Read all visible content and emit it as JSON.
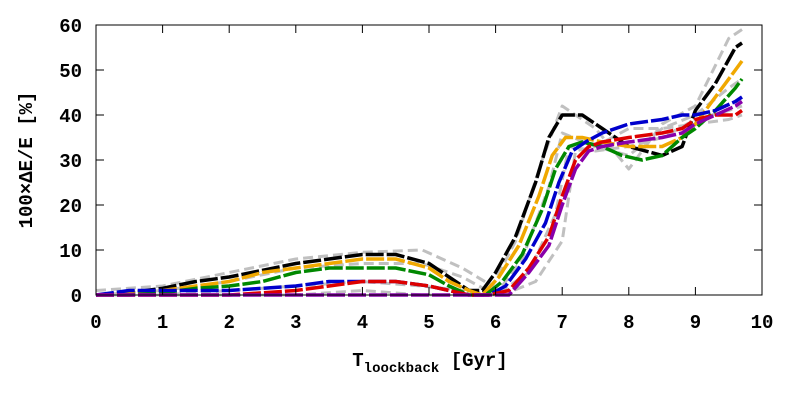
{
  "chart_data": {
    "type": "line",
    "title": "",
    "xlabel": {
      "main": "T",
      "sub": "loockback",
      "unit": "[Gyr]"
    },
    "ylabel": "100×ΔE/E [%]",
    "xlim": [
      0,
      10
    ],
    "ylim": [
      0,
      60
    ],
    "xticks": [
      "0",
      "1",
      "2",
      "3",
      "4",
      "5",
      "6",
      "7",
      "8",
      "9",
      "10"
    ],
    "yticks": [
      "0",
      "10",
      "20",
      "30",
      "40",
      "50",
      "60"
    ],
    "grid": false,
    "legend": "none",
    "colors": {
      "ensemble": "#c0c0c0",
      "black": "#000000",
      "orange": "#f0a800",
      "green": "#008800",
      "blue": "#0000cc",
      "red": "#dd0000",
      "purple": "#8800aa"
    },
    "series": [
      {
        "color": "ensemble",
        "x": [
          0.0,
          1.0,
          2.0,
          3.0,
          4.0,
          4.9,
          5.5,
          5.95,
          6.3,
          6.7,
          7.0,
          7.5,
          8.0,
          8.5,
          9.0,
          9.5,
          9.7
        ],
        "y": [
          1,
          2,
          5,
          8,
          9.5,
          10,
          6,
          2,
          12,
          30,
          42,
          37,
          28,
          38,
          42,
          57,
          59
        ]
      },
      {
        "color": "ensemble",
        "x": [
          0.0,
          1.0,
          2.0,
          3.0,
          4.0,
          4.9,
          5.5,
          6.0,
          6.4,
          6.8,
          7.0,
          7.5,
          8.0,
          8.5,
          9.0,
          9.5,
          9.7
        ],
        "y": [
          0,
          1,
          3,
          6,
          7,
          7,
          4,
          0,
          8,
          24,
          36,
          33,
          31,
          37,
          40,
          46,
          48
        ]
      },
      {
        "color": "ensemble",
        "x": [
          0.0,
          1.0,
          2.0,
          3.0,
          4.0,
          4.9,
          5.5,
          6.0,
          6.5,
          6.9,
          7.1,
          7.5,
          8.0,
          8.5,
          9.0,
          9.5,
          9.7
        ],
        "y": [
          0,
          0,
          1,
          2,
          3,
          2,
          1,
          -1,
          5,
          18,
          33,
          32,
          33,
          35,
          39,
          41,
          42
        ]
      },
      {
        "color": "ensemble",
        "x": [
          0.0,
          1.0,
          2.0,
          3.0,
          4.0,
          4.9,
          5.5,
          6.1,
          6.6,
          7.0,
          7.2,
          7.5,
          8.0,
          8.5,
          9.0,
          9.5,
          9.7
        ],
        "y": [
          0,
          0,
          0,
          0,
          1,
          0,
          -1,
          -1,
          3,
          12,
          32,
          33,
          37,
          37,
          38,
          39,
          40
        ]
      },
      {
        "color": "black",
        "x": [
          0.0,
          0.5,
          1.0,
          1.5,
          2.0,
          2.5,
          3.0,
          3.5,
          4.0,
          4.5,
          5.0,
          5.3,
          5.6,
          5.8,
          6.0,
          6.3,
          6.6,
          6.8,
          7.0,
          7.3,
          7.6,
          8.0,
          8.5,
          8.8,
          9.0,
          9.3,
          9.6,
          9.7
        ],
        "y": [
          0,
          0.5,
          1.5,
          3,
          4,
          5.5,
          7,
          8,
          9,
          9,
          7,
          4,
          1,
          1,
          5,
          13,
          25,
          35,
          40,
          40,
          37,
          33,
          31,
          33,
          41,
          47,
          55,
          56
        ]
      },
      {
        "color": "orange",
        "x": [
          0.0,
          0.5,
          1.0,
          1.5,
          2.0,
          2.5,
          3.0,
          3.5,
          4.0,
          4.5,
          5.0,
          5.3,
          5.6,
          5.8,
          6.05,
          6.35,
          6.65,
          6.85,
          7.05,
          7.3,
          7.6,
          8.0,
          8.5,
          8.8,
          9.0,
          9.3,
          9.6,
          9.7
        ],
        "y": [
          0,
          0.5,
          1,
          2,
          3,
          5,
          6,
          7,
          8,
          8,
          6,
          3,
          1,
          0,
          4,
          11,
          22,
          31,
          35,
          35,
          34,
          33,
          33,
          35,
          38,
          44,
          50,
          52
        ]
      },
      {
        "color": "green",
        "x": [
          0.0,
          0.5,
          1.0,
          1.5,
          2.0,
          2.5,
          3.0,
          3.5,
          4.0,
          4.5,
          5.0,
          5.3,
          5.6,
          5.85,
          6.1,
          6.4,
          6.7,
          6.9,
          7.1,
          7.3,
          7.6,
          7.9,
          8.2,
          8.5,
          8.8,
          9.0,
          9.3,
          9.6,
          9.7
        ],
        "y": [
          0,
          0,
          0.5,
          1.5,
          2,
          3,
          5,
          6,
          6,
          6,
          4.5,
          2,
          0,
          0,
          3,
          9,
          19,
          28,
          33,
          34,
          33,
          31,
          30,
          31,
          35,
          37,
          41,
          46,
          48
        ]
      },
      {
        "color": "blue",
        "x": [
          0.0,
          0.5,
          1.0,
          1.5,
          2.0,
          2.5,
          3.0,
          3.5,
          4.0,
          4.5,
          5.0,
          5.3,
          5.6,
          5.9,
          6.15,
          6.45,
          6.75,
          6.95,
          7.15,
          7.35,
          7.6,
          8.0,
          8.5,
          8.8,
          9.0,
          9.3,
          9.6,
          9.7
        ],
        "y": [
          0,
          1,
          1,
          1,
          1,
          1.5,
          2,
          3,
          3,
          3,
          2,
          1,
          0,
          0,
          2,
          8,
          16,
          25,
          32,
          34,
          36,
          38,
          39,
          40,
          40,
          41,
          43,
          44
        ]
      },
      {
        "color": "red",
        "x": [
          0.0,
          0.5,
          1.0,
          1.5,
          2.0,
          2.5,
          3.0,
          3.5,
          4.0,
          4.5,
          5.0,
          5.3,
          5.6,
          5.9,
          6.2,
          6.5,
          6.8,
          7.0,
          7.2,
          7.4,
          7.6,
          8.0,
          8.5,
          8.8,
          9.0,
          9.3,
          9.6,
          9.7
        ],
        "y": [
          0,
          0,
          0,
          0,
          0,
          0.5,
          1,
          2,
          3,
          3,
          2,
          1,
          -1,
          0,
          1,
          6,
          13,
          22,
          30,
          33,
          34,
          35,
          36,
          37,
          39,
          40,
          40,
          41
        ]
      },
      {
        "color": "purple",
        "x": [
          0.0,
          0.5,
          1.0,
          1.5,
          2.0,
          2.5,
          3.0,
          3.5,
          4.0,
          4.5,
          5.0,
          5.3,
          5.6,
          5.9,
          6.2,
          6.5,
          6.8,
          7.0,
          7.2,
          7.4,
          7.6,
          8.0,
          8.5,
          8.8,
          9.0,
          9.3,
          9.6,
          9.7
        ],
        "y": [
          0,
          0,
          0,
          0,
          0,
          0,
          0,
          0,
          0,
          0,
          0,
          0,
          -1,
          -1,
          0,
          5,
          11,
          20,
          28,
          32,
          33,
          34,
          35,
          36,
          38,
          40,
          42,
          43
        ]
      }
    ]
  }
}
